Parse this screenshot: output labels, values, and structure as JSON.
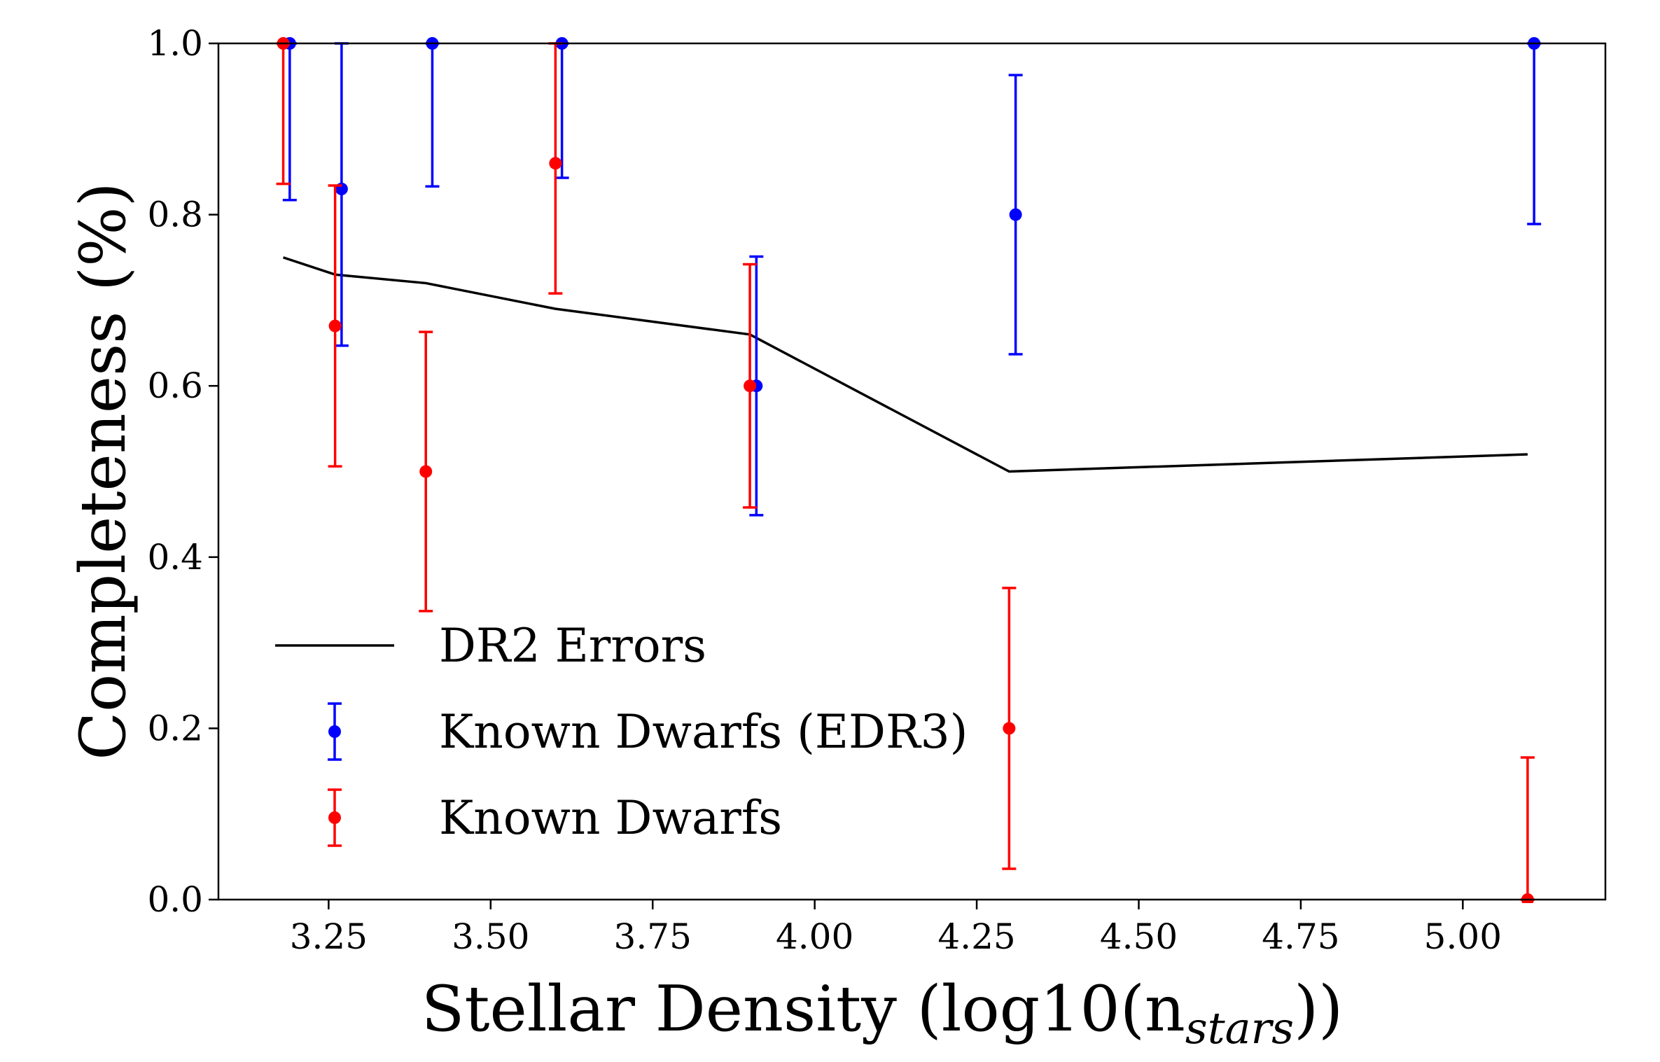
{
  "chart_data": {
    "type": "line",
    "title": "",
    "xlabel": "Stellar Density (log10(n",
    "xlabel_sub": "stars",
    "xlabel_close": "))",
    "ylabel": "Completeness (%)",
    "xlim": [
      3.08,
      5.22
    ],
    "ylim": [
      0.0,
      1.0
    ],
    "xticks": [
      3.25,
      3.5,
      3.75,
      4.0,
      4.25,
      4.5,
      4.75,
      5.0
    ],
    "xtick_labels": [
      "3.25",
      "3.50",
      "3.75",
      "4.00",
      "4.25",
      "4.50",
      "4.75",
      "5.00"
    ],
    "yticks": [
      0.0,
      0.2,
      0.4,
      0.6,
      0.8,
      1.0
    ],
    "ytick_labels": [
      "0.0",
      "0.2",
      "0.4",
      "0.6",
      "0.8",
      "1.0"
    ],
    "legend_position": "lower-left",
    "series": [
      {
        "name": "DR2 Errors",
        "kind": "line",
        "color": "#000000",
        "x": [
          3.18,
          3.26,
          3.4,
          3.6,
          3.9,
          4.3,
          5.1
        ],
        "y": [
          0.75,
          0.73,
          0.72,
          0.69,
          0.66,
          0.5,
          0.52
        ]
      },
      {
        "name": "Known Dwarfs (EDR3)",
        "kind": "errorbar",
        "color": "#0000ff",
        "x": [
          3.19,
          3.27,
          3.41,
          3.61,
          3.91,
          4.31,
          5.11
        ],
        "y": [
          1.0,
          0.83,
          1.0,
          1.0,
          0.6,
          0.8,
          1.0
        ],
        "err_low": [
          0.817,
          0.647,
          0.833,
          0.843,
          0.449,
          0.637,
          0.789
        ],
        "err_high": [
          1.0,
          1.0,
          1.0,
          1.0,
          0.751,
          0.963,
          1.0
        ]
      },
      {
        "name": "Known Dwarfs",
        "kind": "errorbar",
        "color": "#ff0000",
        "x": [
          3.18,
          3.26,
          3.4,
          3.6,
          3.9,
          4.3,
          5.1
        ],
        "y": [
          1.0,
          0.67,
          0.5,
          0.86,
          0.6,
          0.2,
          0.0
        ],
        "err_low": [
          0.836,
          0.506,
          0.337,
          0.708,
          0.458,
          0.036,
          0.0
        ],
        "err_high": [
          1.0,
          0.834,
          0.663,
          1.0,
          0.742,
          0.364,
          0.166
        ]
      }
    ]
  }
}
